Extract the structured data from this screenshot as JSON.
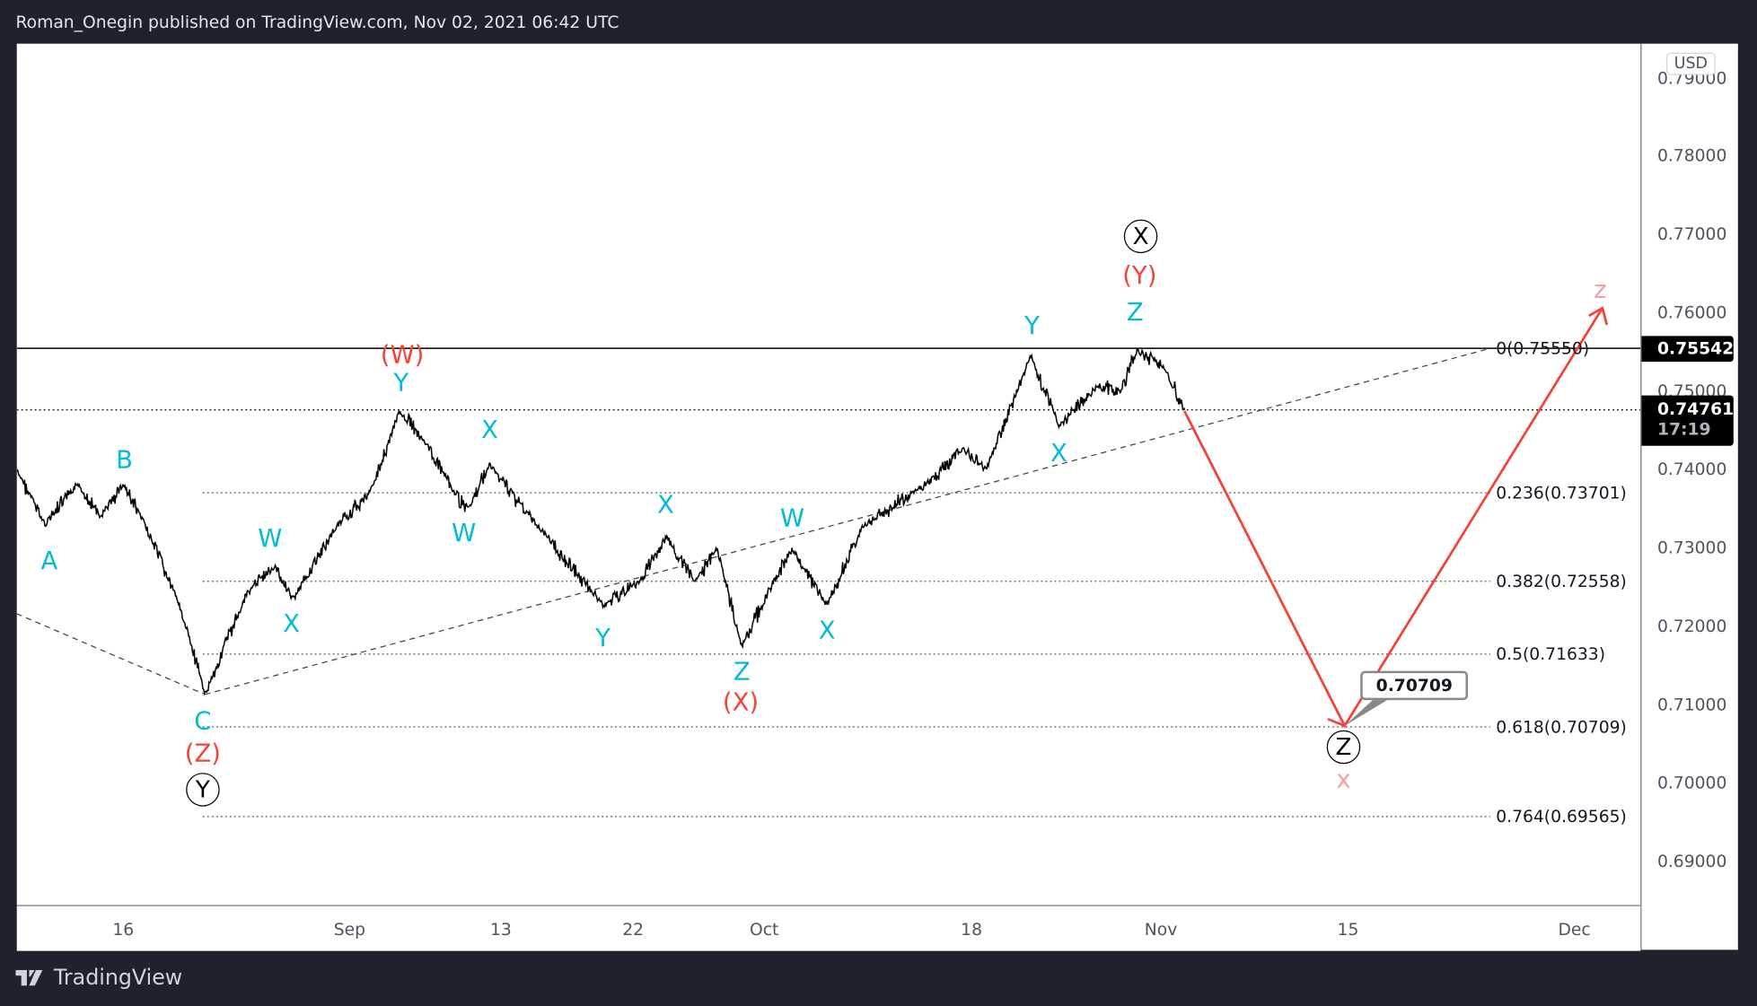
{
  "header": {
    "title": "Roman_Onegin published on TradingView.com, Nov 02, 2021 06:42 UTC"
  },
  "price_axis": {
    "currency": "USD",
    "ticks": [
      "0.79000",
      "0.78000",
      "0.77000",
      "0.76000",
      "0.75000",
      "0.74000",
      "0.73000",
      "0.72000",
      "0.71000",
      "0.70000",
      "0.69000"
    ],
    "last_price": "0.75542",
    "current_price": "0.74761",
    "countdown": "17:19"
  },
  "time_axis": {
    "ticks": [
      "16",
      "Sep",
      "13",
      "22",
      "Oct",
      "18",
      "Nov",
      "15",
      "Dec"
    ]
  },
  "fib_levels": [
    "0(0.75550)",
    "0.236(0.73701)",
    "0.382(0.72558)",
    "0.5(0.71633)",
    "0.618(0.70709)",
    "0.764(0.69565)"
  ],
  "target_callout": "0.70709",
  "wave_labels": {
    "minor": [
      "A",
      "B",
      "C",
      "W",
      "X",
      "Y",
      "X",
      "W",
      "Y",
      "X",
      "Z",
      "W",
      "X",
      "Y",
      "X",
      "Z"
    ],
    "intermediate": [
      "(W)",
      "(Z)",
      "(X)",
      "(Y)"
    ],
    "primary": [
      "Y",
      "X",
      "Z"
    ],
    "projection": [
      "z",
      "x"
    ]
  },
  "colors": {
    "minor": "#00bcd4",
    "intermediate": "#f44336",
    "projection": "#f4a0a0",
    "arrow": "#f44336"
  },
  "footer": {
    "brand": "TradingView"
  }
}
